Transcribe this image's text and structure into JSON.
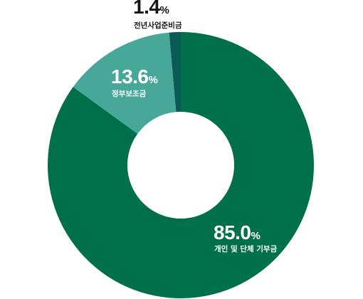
{
  "chart_data": {
    "type": "pie",
    "donut": true,
    "unit": "%",
    "slices": [
      {
        "label": "개인 및 단체 기부금",
        "value": 85.0,
        "value_text": "85.0",
        "color": "#00704a"
      },
      {
        "label": "정부보조금",
        "value": 13.6,
        "value_text": "13.6",
        "color": "#47a899"
      },
      {
        "label": "전년사업준비금",
        "value": 1.4,
        "value_text": "1.4",
        "color": "#0a5a55"
      }
    ]
  }
}
